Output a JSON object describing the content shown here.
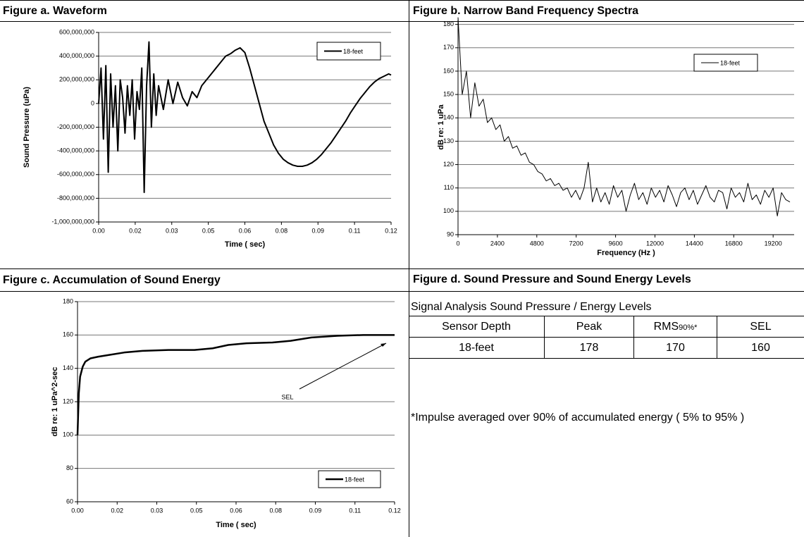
{
  "chart_data": [
    {
      "type": "line",
      "title": "Figure a. Waveform",
      "xlabel": "Time ( sec)",
      "ylabel": "Sound Pressure (uPa)",
      "grid": true,
      "xlim": [
        0,
        0.122
      ],
      "ylim": [
        -1000000000,
        600000000
      ],
      "xticks": [
        {
          "value": 0,
          "label": "0.00"
        },
        {
          "value": 0.01525,
          "label": "0.02"
        },
        {
          "value": 0.0305,
          "label": "0.03"
        },
        {
          "value": 0.04575,
          "label": "0.05"
        },
        {
          "value": 0.061,
          "label": "0.06"
        },
        {
          "value": 0.07625,
          "label": "0.08"
        },
        {
          "value": 0.0915,
          "label": "0.09"
        },
        {
          "value": 0.10675,
          "label": "0.11"
        },
        {
          "value": 0.122,
          "label": "0.12"
        }
      ],
      "yticks": [
        {
          "value": -1000000000,
          "label": "-1,000,000,000"
        },
        {
          "value": -800000000,
          "label": "-800,000,000"
        },
        {
          "value": -600000000,
          "label": "-600,000,000"
        },
        {
          "value": -400000000,
          "label": "-400,000,000"
        },
        {
          "value": -200000000,
          "label": "-200,000,000"
        },
        0,
        {
          "value": 200000000,
          "label": "200,000,000"
        },
        {
          "value": 400000000,
          "label": "400,000,000"
        },
        {
          "value": 600000000,
          "label": "600,000,000"
        }
      ],
      "x": [
        0,
        0.001,
        0.002,
        0.003,
        0.004,
        0.005,
        0.006,
        0.007,
        0.008,
        0.009,
        0.01,
        0.011,
        0.012,
        0.013,
        0.014,
        0.015,
        0.016,
        0.017,
        0.018,
        0.019,
        0.02,
        0.021,
        0.022,
        0.023,
        0.024,
        0.025,
        0.027,
        0.029,
        0.031,
        0.033,
        0.035,
        0.037,
        0.039,
        0.041,
        0.043,
        0.045,
        0.047,
        0.049,
        0.051,
        0.053,
        0.055,
        0.057,
        0.059,
        0.061,
        0.063,
        0.065,
        0.067,
        0.069,
        0.071,
        0.073,
        0.075,
        0.077,
        0.079,
        0.081,
        0.083,
        0.085,
        0.087,
        0.089,
        0.091,
        0.093,
        0.095,
        0.097,
        0.099,
        0.101,
        0.103,
        0.105,
        0.107,
        0.109,
        0.111,
        0.113,
        0.115,
        0.117,
        0.119,
        0.121,
        0.122
      ],
      "series": [
        {
          "name": "18-feet",
          "color": "#000000",
          "values": [
            0,
            300000000,
            -300000000,
            320000000,
            -580000000,
            250000000,
            -200000000,
            150000000,
            -400000000,
            200000000,
            50000000,
            -250000000,
            150000000,
            -100000000,
            200000000,
            -300000000,
            100000000,
            -50000000,
            300000000,
            -750000000,
            150000000,
            520000000,
            -200000000,
            250000000,
            -100000000,
            150000000,
            -50000000,
            200000000,
            0,
            180000000,
            50000000,
            -20000000,
            100000000,
            50000000,
            150000000,
            200000000,
            250000000,
            300000000,
            350000000,
            400000000,
            420000000,
            450000000,
            470000000,
            430000000,
            300000000,
            150000000,
            0,
            -150000000,
            -250000000,
            -350000000,
            -420000000,
            -470000000,
            -500000000,
            -520000000,
            -530000000,
            -530000000,
            -520000000,
            -500000000,
            -470000000,
            -430000000,
            -380000000,
            -330000000,
            -270000000,
            -210000000,
            -150000000,
            -80000000,
            -20000000,
            40000000,
            90000000,
            140000000,
            180000000,
            210000000,
            230000000,
            250000000,
            240000000
          ]
        }
      ]
    },
    {
      "type": "line",
      "title": "Figure b. Narrow Band Frequency Spectra",
      "xlabel": "Frequency (Hz )",
      "ylabel": "dB re: 1 uPa",
      "grid": true,
      "xlim": [
        0,
        20480
      ],
      "ylim": [
        90,
        182
      ],
      "xticks": [
        0,
        2400,
        4800,
        7200,
        9600,
        12000,
        14400,
        16800,
        19200
      ],
      "yticks": [
        90,
        100,
        110,
        120,
        130,
        140,
        150,
        160,
        170,
        180
      ],
      "x": [
        0,
        256,
        512,
        768,
        1024,
        1280,
        1536,
        1792,
        2048,
        2304,
        2560,
        2816,
        3072,
        3328,
        3584,
        3840,
        4096,
        4352,
        4608,
        4864,
        5120,
        5376,
        5632,
        5888,
        6144,
        6400,
        6656,
        6912,
        7168,
        7424,
        7680,
        7936,
        8192,
        8448,
        8704,
        8960,
        9216,
        9472,
        9728,
        9984,
        10240,
        10496,
        10752,
        11008,
        11264,
        11520,
        11776,
        12032,
        12288,
        12544,
        12800,
        13056,
        13312,
        13568,
        13824,
        14080,
        14336,
        14592,
        14848,
        15104,
        15360,
        15616,
        15872,
        16128,
        16384,
        16640,
        16896,
        17152,
        17408,
        17664,
        17920,
        18176,
        18432,
        18688,
        18944,
        19200,
        19456,
        19712,
        19968,
        20224
      ],
      "series": [
        {
          "name": "18-feet",
          "color": "#000000",
          "values": [
            183,
            150,
            160,
            140,
            155,
            145,
            148,
            138,
            140,
            135,
            137,
            130,
            132,
            127,
            128,
            124,
            125,
            121,
            120,
            117,
            116,
            113,
            114,
            111,
            112,
            109,
            110,
            106,
            109,
            105,
            110,
            121,
            104,
            110,
            104,
            108,
            103,
            111,
            106,
            109,
            100,
            107,
            112,
            105,
            108,
            103,
            110,
            106,
            109,
            104,
            111,
            107,
            102,
            108,
            110,
            105,
            109,
            103,
            107,
            111,
            106,
            104,
            109,
            108,
            101,
            110,
            106,
            108,
            104,
            112,
            105,
            107,
            103,
            109,
            106,
            110,
            98,
            108,
            105,
            104
          ]
        }
      ]
    },
    {
      "type": "line",
      "title": "Figure c. Accumulation of Sound Energy",
      "xlabel": "Time ( sec)",
      "ylabel": "dB re: 1 uPa^2-sec",
      "annotation": "SEL",
      "grid": true,
      "xlim": [
        0,
        0.122
      ],
      "ylim": [
        60,
        180
      ],
      "xticks": [
        {
          "value": 0,
          "label": "0.00"
        },
        {
          "value": 0.01525,
          "label": "0.02"
        },
        {
          "value": 0.0305,
          "label": "0.03"
        },
        {
          "value": 0.04575,
          "label": "0.05"
        },
        {
          "value": 0.061,
          "label": "0.06"
        },
        {
          "value": 0.07625,
          "label": "0.08"
        },
        {
          "value": 0.0915,
          "label": "0.09"
        },
        {
          "value": 0.10675,
          "label": "0.11"
        },
        {
          "value": 0.122,
          "label": "0.12"
        }
      ],
      "yticks": [
        60,
        80,
        100,
        120,
        140,
        160,
        180
      ],
      "x": [
        0,
        0.0005,
        0.001,
        0.002,
        0.003,
        0.005,
        0.008,
        0.012,
        0.018,
        0.025,
        0.035,
        0.045,
        0.052,
        0.058,
        0.065,
        0.075,
        0.082,
        0.09,
        0.1,
        0.11,
        0.122
      ],
      "series": [
        {
          "name": "18-feet",
          "color": "#000000",
          "values": [
            100,
            125,
            135,
            141,
            144,
            146,
            147,
            148,
            149.5,
            150.5,
            151,
            151,
            152,
            154,
            155,
            155.5,
            156.5,
            158.5,
            159.5,
            160,
            160
          ]
        }
      ]
    }
  ],
  "table": {
    "title": "Figure d. Sound Pressure and Sound Energy Levels",
    "caption": "Signal Analysis Sound Pressure / Energy Levels",
    "columns": [
      "Sensor Depth",
      "Peak",
      {
        "text": "RMS",
        "sub": "90%*"
      },
      "SEL"
    ],
    "rows": [
      [
        "18-feet",
        178,
        170,
        160
      ]
    ],
    "footnote": "*Impulse averaged over 90% of accumulated energy ( 5% to 95% )"
  }
}
